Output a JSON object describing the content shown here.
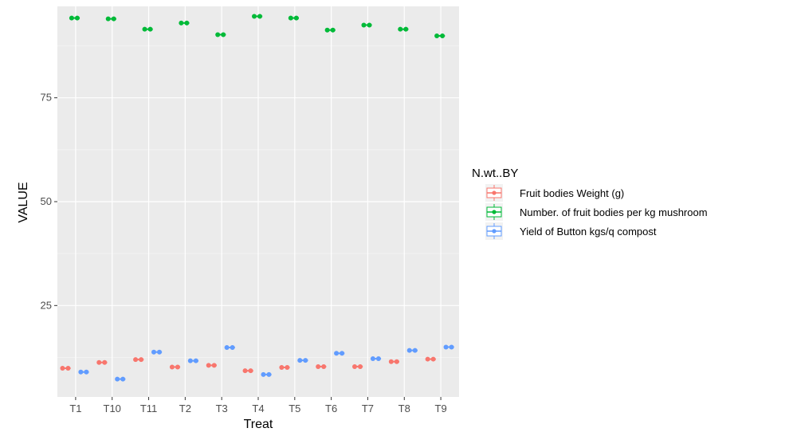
{
  "chart_data": {
    "type": "boxplot",
    "xlabel": "Treat",
    "ylabel": "VALUE",
    "categories": [
      "T1",
      "T10",
      "T11",
      "T2",
      "T3",
      "T4",
      "T5",
      "T6",
      "T7",
      "T8",
      "T9"
    ],
    "yticks": [
      25,
      50,
      75
    ],
    "ylim": [
      3,
      97
    ],
    "grid": true,
    "legend": {
      "title": "N.wt..BY",
      "placement": "right"
    },
    "series": [
      {
        "name": "Fruit bodies Weight (g)",
        "color": "#F8766D",
        "values": [
          9.9,
          11.3,
          12.0,
          10.2,
          10.6,
          9.3,
          10.1,
          10.3,
          10.3,
          11.5,
          12.1
        ]
      },
      {
        "name": "Number. of fruit bodies per kg mushroom",
        "color": "#00BA38",
        "values": [
          94.2,
          94.0,
          91.5,
          93.0,
          90.2,
          94.6,
          94.2,
          91.3,
          92.5,
          91.5,
          89.9
        ]
      },
      {
        "name": "Yield of Button kgs/q compost",
        "color": "#619CFF",
        "values": [
          9.0,
          7.3,
          13.8,
          11.7,
          14.9,
          8.4,
          11.8,
          13.5,
          12.2,
          14.2,
          15.0
        ]
      }
    ]
  }
}
